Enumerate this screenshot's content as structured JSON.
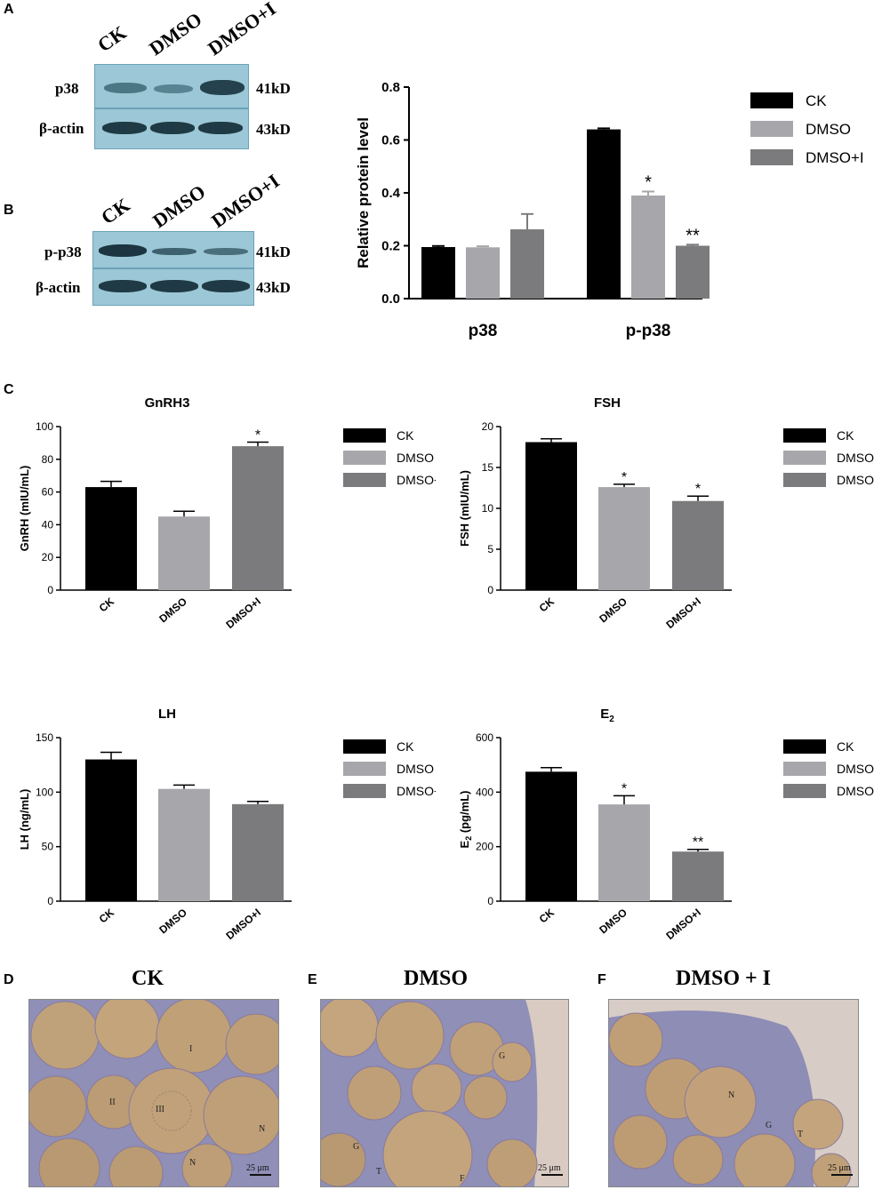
{
  "panels": {
    "A": "A",
    "B": "B",
    "C": "C",
    "D": "D",
    "E": "E",
    "F": "F"
  },
  "blots": {
    "lanes": [
      "CK",
      "DMSO",
      "DMSO+I"
    ],
    "a": {
      "rows": [
        {
          "label": "p38",
          "kd": "41kD"
        },
        {
          "label": "β-actin",
          "kd": "43kD"
        }
      ]
    },
    "b": {
      "rows": [
        {
          "label": "p-p38",
          "kd": "41kD"
        },
        {
          "label": "β-actin",
          "kd": "43kD"
        }
      ]
    },
    "colors": {
      "blot_bg": "#9cc7d6",
      "band": "#1f3a44"
    }
  },
  "colors": {
    "CK": "#000000",
    "DMSO": "#a7a7ab",
    "DMSO+I": "#7b7b7e"
  },
  "chart_data": [
    {
      "id": "protein",
      "type": "bar",
      "title": "",
      "xlabel": "",
      "ylabel": "Relative protein level",
      "ylim": [
        0,
        0.8
      ],
      "yticks": [
        "0.0",
        "0.2",
        "0.4",
        "0.6",
        "0.8"
      ],
      "ytick_values": [
        0,
        0.2,
        0.4,
        0.6,
        0.8
      ],
      "categories": [
        "p38",
        "p-p38"
      ],
      "series": [
        {
          "name": "CK",
          "values": [
            0.195,
            0.64
          ],
          "errors": [
            0.004,
            0.004
          ],
          "sig": [
            "",
            ""
          ]
        },
        {
          "name": "DMSO",
          "values": [
            0.194,
            0.39
          ],
          "errors": [
            0.004,
            0.015
          ],
          "sig": [
            "",
            "*"
          ]
        },
        {
          "name": "DMSO+I",
          "values": [
            0.262,
            0.2
          ],
          "errors": [
            0.058,
            0.004
          ],
          "sig": [
            "",
            "**"
          ]
        }
      ],
      "legend": [
        "CK",
        "DMSO",
        "DMSO+I"
      ],
      "legend_position": "top-right"
    },
    {
      "id": "gnrh",
      "type": "bar",
      "title": "GnRH3",
      "ylabel": "GnRH (mIU/mL)",
      "ylim": [
        0,
        100
      ],
      "yticks": [
        "0",
        "20",
        "40",
        "60",
        "80",
        "100"
      ],
      "ytick_values": [
        0,
        20,
        40,
        60,
        80,
        100
      ],
      "categories": [
        "CK",
        "DMSO",
        "DMSO+I"
      ],
      "values": [
        63,
        45,
        88
      ],
      "errors": [
        3.5,
        3.2,
        2.5
      ],
      "sig": [
        "",
        "",
        "*"
      ],
      "legend": [
        "CK",
        "DMSO",
        "DMSO+I"
      ],
      "legend_position": "right"
    },
    {
      "id": "fsh",
      "type": "bar",
      "title": "FSH",
      "ylabel": "FSH (mIU/mL)",
      "ylim": [
        0,
        20
      ],
      "yticks": [
        "0",
        "5",
        "10",
        "15",
        "20"
      ],
      "ytick_values": [
        0,
        5,
        10,
        15,
        20
      ],
      "categories": [
        "CK",
        "DMSO",
        "DMSO+I"
      ],
      "values": [
        18.1,
        12.6,
        10.9
      ],
      "errors": [
        0.4,
        0.35,
        0.6
      ],
      "sig": [
        "",
        "*",
        "*"
      ],
      "legend": [
        "CK",
        "DMSO",
        "DMSO+I"
      ],
      "legend_position": "right"
    },
    {
      "id": "lh",
      "type": "bar",
      "title": "LH",
      "ylabel": "LH (ng/mL)",
      "ylim": [
        0,
        150
      ],
      "yticks": [
        "0",
        "50",
        "100",
        "150"
      ],
      "ytick_values": [
        0,
        50,
        100,
        150
      ],
      "categories": [
        "CK",
        "DMSO",
        "DMSO+I"
      ],
      "values": [
        130,
        103,
        89
      ],
      "errors": [
        6.5,
        3.5,
        2.5
      ],
      "sig": [
        "",
        "",
        ""
      ],
      "legend": [
        "CK",
        "DMSO",
        "DMSO+I"
      ],
      "legend_position": "right"
    },
    {
      "id": "e2",
      "type": "bar",
      "title": "E2",
      "ylabel": "E2 (pg/mL)",
      "ylim": [
        0,
        600
      ],
      "yticks": [
        "0",
        "200",
        "400",
        "600"
      ],
      "ytick_values": [
        0,
        200,
        400,
        600
      ],
      "categories": [
        "CK",
        "DMSO",
        "DMSO+I"
      ],
      "values": [
        475,
        355,
        182
      ],
      "errors": [
        15,
        32,
        8
      ],
      "sig": [
        "",
        "*",
        "**"
      ],
      "legend": [
        "CK",
        "DMSO",
        "DMSO+I"
      ],
      "legend_position": "right"
    }
  ],
  "micrographs": {
    "d": {
      "title": "CK",
      "scale": "25 μm",
      "labels": [
        "I",
        "II",
        "III",
        "N",
        "N"
      ]
    },
    "e": {
      "title": "DMSO",
      "scale": "25 μm",
      "labels": [
        "G",
        "T",
        "F",
        "G"
      ]
    },
    "f": {
      "title": "DMSO + I",
      "scale": "25 μm",
      "labels": [
        "N",
        "G",
        "T"
      ]
    }
  }
}
